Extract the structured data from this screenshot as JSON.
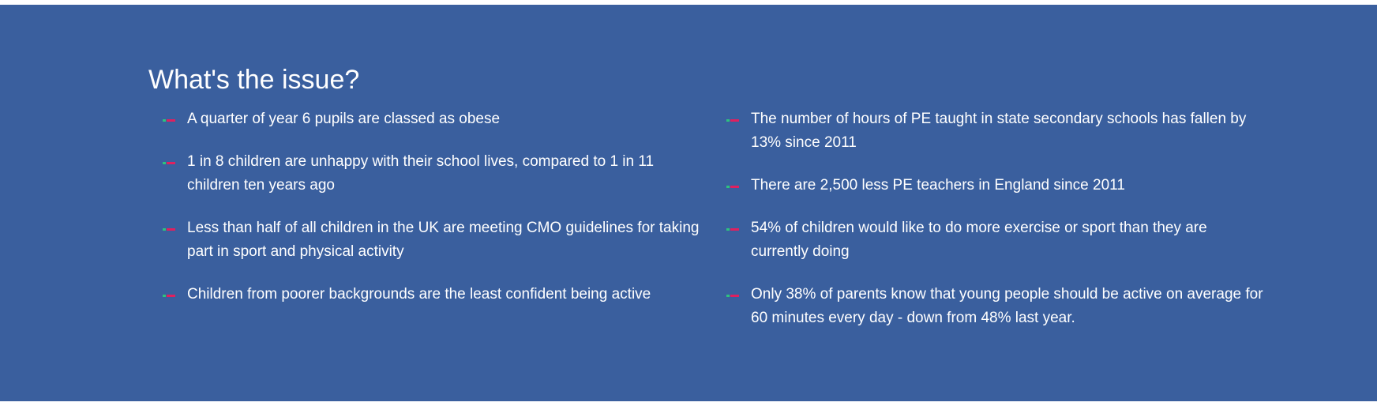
{
  "section": {
    "title": "What's the issue?"
  },
  "left_list": [
    "A quarter of year 6 pupils are classed as obese",
    "1 in 8 children are unhappy with their school lives, compared to 1 in 11 children ten years ago",
    "Less than half of all children in the UK are meeting CMO guidelines for taking part in sport and physical activity",
    "Children from poorer backgrounds are the least confident being active"
  ],
  "right_list": [
    "The number of hours of PE taught in state secondary schools has fallen by 13% since 2011",
    "There are 2,500 less PE teachers in England since 2011",
    "54% of children would like to do more exercise or sport than they are currently doing",
    "Only 38% of parents know that young people should be active on average for 60 minutes every day - down from 48% last year."
  ],
  "colors": {
    "background": "#3a5f9e",
    "text": "#ffffff",
    "bullet_green": "#2ec27e",
    "bullet_pink": "#e0205f"
  },
  "icons": {
    "bullet": "dash-bullet-icon"
  }
}
